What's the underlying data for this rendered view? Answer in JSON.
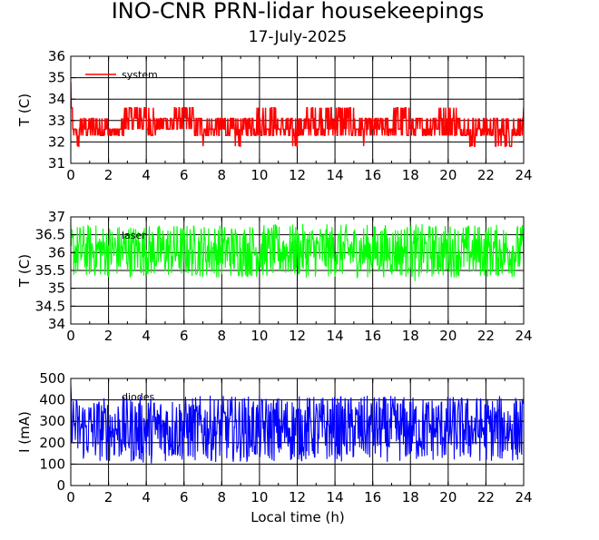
{
  "title": "INO-CNR PRN-lidar housekeepings",
  "subtitle": "17-July-2025",
  "xlabel": "Local time (h)",
  "chart_data": [
    {
      "type": "line",
      "ylabel": "T (C)",
      "xlim": [
        0,
        24
      ],
      "ylim": [
        31,
        36
      ],
      "xticks": [
        0,
        2,
        4,
        6,
        8,
        10,
        12,
        14,
        16,
        18,
        20,
        22,
        24
      ],
      "yticks": [
        31,
        32,
        33,
        34,
        35,
        36
      ],
      "grid": true,
      "legend_position": "top-left",
      "series": [
        {
          "name": "system",
          "color": "#ff0000",
          "note": "value alternates within band",
          "x": [
            0,
            0.05,
            0.1,
            0.2,
            0.5,
            1.0,
            1.5,
            2.0,
            2.5,
            2.8,
            3.0,
            3.5,
            4.0,
            4.5,
            5.0,
            5.5,
            6.0,
            6.5,
            7.0,
            7.5,
            8.0,
            8.5,
            9.0,
            9.5,
            10.0,
            10.5,
            11.0,
            11.5,
            12.0,
            12.5,
            13.0,
            13.5,
            14.0,
            14.5,
            15.0,
            15.5,
            16.0,
            16.5,
            17.0,
            17.5,
            18.0,
            18.5,
            19.0,
            19.5,
            20.0,
            20.5,
            21.0,
            21.5,
            22.0,
            22.5,
            23.0,
            23.5,
            24.0
          ],
          "low": [
            33.5,
            33.3,
            32.0,
            31.8,
            31.8,
            32.3,
            31.8,
            32.3,
            31.8,
            32.3,
            32.5,
            32.5,
            32.3,
            32.3,
            32.5,
            32.5,
            32.5,
            32.3,
            31.8,
            32.0,
            32.0,
            31.8,
            31.8,
            32.0,
            32.3,
            32.3,
            32.0,
            31.8,
            31.8,
            32.3,
            31.8,
            32.3,
            32.3,
            32.3,
            32.3,
            31.8,
            32.0,
            32.3,
            31.8,
            32.3,
            32.3,
            31.8,
            32.3,
            32.0,
            32.0,
            32.3,
            31.8,
            31.8,
            32.3,
            31.8,
            31.8,
            31.8,
            32.3
          ],
          "high": [
            34.8,
            35.3,
            33.1,
            32.6,
            33.1,
            33.1,
            33.1,
            33.1,
            32.6,
            33.6,
            33.6,
            33.6,
            33.6,
            33.6,
            33.1,
            33.6,
            33.6,
            33.6,
            33.1,
            33.1,
            33.1,
            33.1,
            33.1,
            33.6,
            33.6,
            33.6,
            33.6,
            33.1,
            33.1,
            33.6,
            33.6,
            33.6,
            33.6,
            33.6,
            33.6,
            33.1,
            33.1,
            33.1,
            33.6,
            33.6,
            33.6,
            33.1,
            33.6,
            33.6,
            33.6,
            33.6,
            33.1,
            33.1,
            33.1,
            33.1,
            33.1,
            33.1,
            33.6
          ]
        }
      ]
    },
    {
      "type": "line",
      "ylabel": "T (C)",
      "xlim": [
        0,
        24
      ],
      "ylim": [
        34,
        37
      ],
      "xticks": [
        0,
        2,
        4,
        6,
        8,
        10,
        12,
        14,
        16,
        18,
        20,
        22,
        24
      ],
      "yticks": [
        34,
        34.5,
        35,
        35.5,
        36,
        36.5,
        37
      ],
      "grid": true,
      "legend_position": "top-left",
      "series": [
        {
          "name": "laser",
          "color": "#00ff00",
          "x": [
            0,
            1,
            2,
            3,
            4,
            5,
            6,
            7,
            8,
            9,
            10,
            11,
            12,
            13,
            14,
            15,
            16,
            17,
            18,
            18.4,
            19,
            20,
            21,
            22,
            23,
            24
          ],
          "low": [
            35.3,
            35.3,
            35.3,
            35.3,
            35.3,
            35.3,
            35.3,
            35.3,
            35.3,
            35.3,
            35.3,
            35.3,
            35.3,
            35.3,
            35.3,
            35.3,
            35.3,
            35.3,
            35.3,
            35.1,
            35.3,
            35.3,
            35.3,
            35.3,
            35.3,
            35.3
          ],
          "high": [
            36.8,
            36.8,
            36.8,
            36.8,
            36.8,
            36.8,
            36.8,
            36.8,
            36.8,
            36.8,
            36.8,
            36.8,
            36.8,
            36.8,
            36.8,
            36.8,
            36.8,
            36.8,
            36.8,
            36.8,
            36.8,
            36.8,
            36.8,
            36.8,
            36.8,
            36.8
          ]
        }
      ]
    },
    {
      "type": "line",
      "ylabel": "I (mA)",
      "xlim": [
        0,
        24
      ],
      "ylim": [
        0,
        500
      ],
      "xticks": [
        0,
        2,
        4,
        6,
        8,
        10,
        12,
        14,
        16,
        18,
        20,
        22,
        24
      ],
      "yticks": [
        0,
        100,
        200,
        300,
        400,
        500
      ],
      "grid": true,
      "legend_position": "top-left",
      "series": [
        {
          "name": "diodes",
          "color": "#0000ff",
          "x": [
            0,
            0.05,
            0.3,
            1,
            2,
            3,
            3.5,
            4,
            5,
            6,
            7,
            8,
            9,
            10,
            11,
            12,
            13,
            14,
            15,
            16,
            17,
            18,
            19,
            20,
            21,
            22,
            23,
            24
          ],
          "low": [
            120,
            200,
            110,
            110,
            110,
            110,
            95,
            100,
            110,
            110,
            110,
            110,
            110,
            110,
            110,
            110,
            110,
            110,
            110,
            110,
            110,
            105,
            110,
            110,
            110,
            110,
            110,
            110
          ],
          "high": [
            470,
            440,
            420,
            415,
            415,
            420,
            420,
            420,
            420,
            420,
            420,
            420,
            420,
            420,
            420,
            420,
            420,
            420,
            420,
            420,
            420,
            420,
            420,
            420,
            420,
            420,
            420,
            420
          ]
        }
      ]
    }
  ]
}
